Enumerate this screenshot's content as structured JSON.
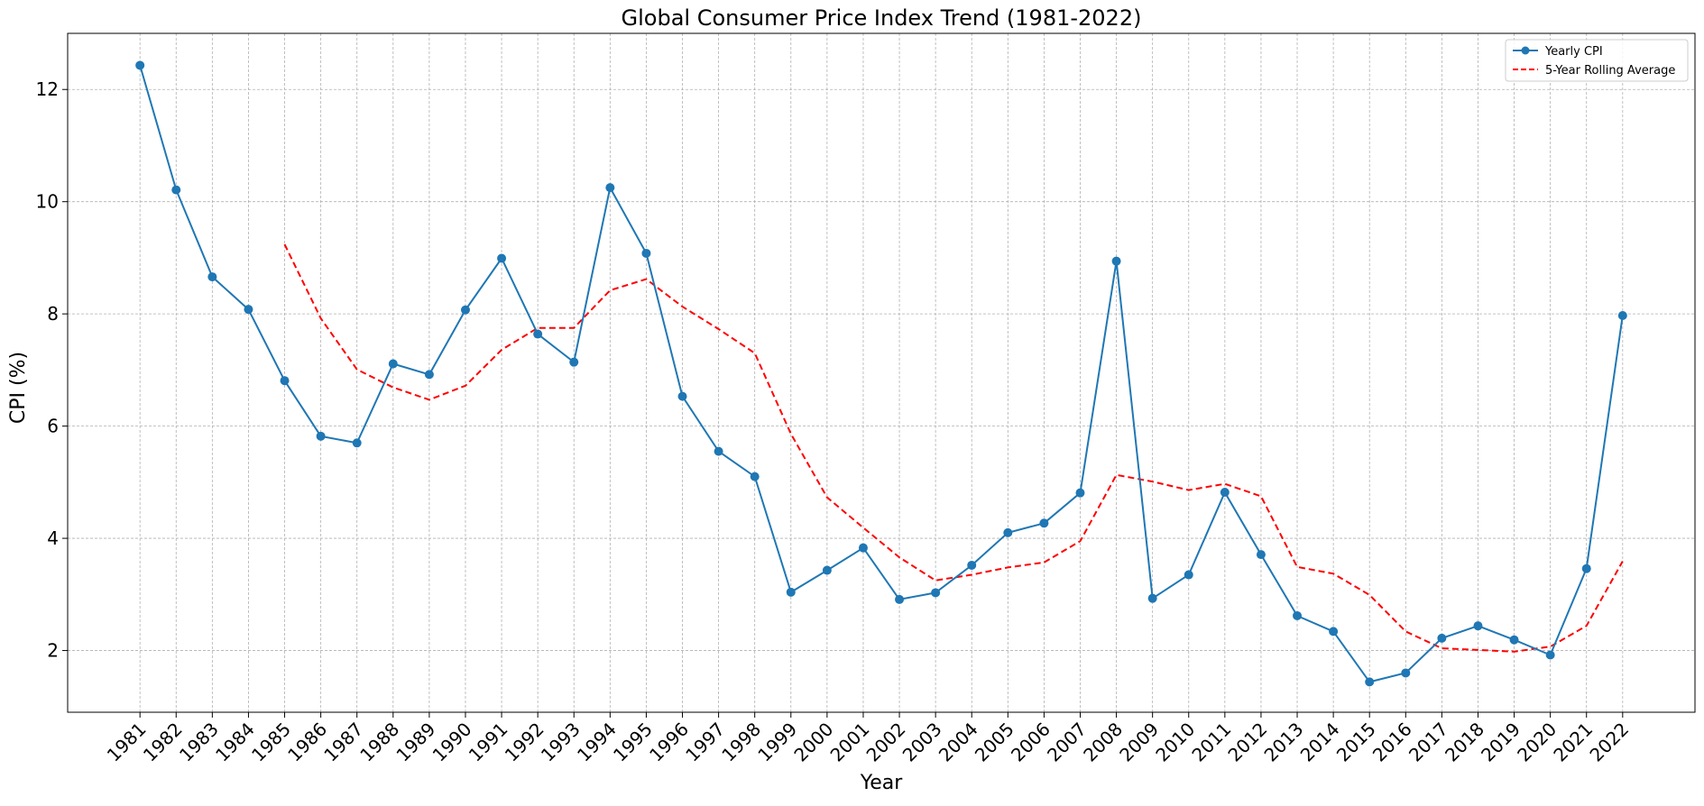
{
  "chart_data": {
    "type": "line",
    "title": "Global Consumer Price Index Trend (1981-2022)",
    "xlabel": "Year",
    "ylabel": "CPI (%)",
    "x": [
      1981,
      1982,
      1983,
      1984,
      1985,
      1986,
      1987,
      1988,
      1989,
      1990,
      1991,
      1992,
      1993,
      1994,
      1995,
      1996,
      1997,
      1998,
      1999,
      2000,
      2001,
      2002,
      2003,
      2004,
      2005,
      2006,
      2007,
      2008,
      2009,
      2010,
      2011,
      2012,
      2013,
      2014,
      2015,
      2016,
      2017,
      2018,
      2019,
      2020,
      2021,
      2022
    ],
    "yticks": [
      2,
      4,
      6,
      8,
      10,
      12
    ],
    "ylim": [
      0.9,
      13.0
    ],
    "xlim": [
      1979.0,
      2024.0
    ],
    "grid": true,
    "legend_position": "top-right",
    "series": [
      {
        "name": "Yearly CPI",
        "color": "#1f77b4",
        "style": "solid-with-markers",
        "values": [
          12.43,
          10.21,
          8.66,
          8.08,
          6.81,
          5.82,
          5.7,
          7.11,
          6.92,
          8.07,
          8.99,
          7.64,
          7.14,
          10.25,
          9.08,
          6.53,
          5.55,
          5.1,
          3.04,
          3.43,
          3.83,
          2.91,
          3.03,
          3.52,
          4.1,
          4.27,
          4.81,
          8.94,
          2.93,
          3.35,
          4.82,
          3.71,
          2.62,
          2.34,
          1.44,
          1.6,
          2.22,
          2.44,
          2.19,
          1.92,
          3.46,
          7.97
        ]
      },
      {
        "name": "5-Year Rolling Average",
        "color": "#ff0000",
        "style": "dashed",
        "values": [
          null,
          null,
          null,
          null,
          9.24,
          7.92,
          7.01,
          6.69,
          6.47,
          6.72,
          7.36,
          7.75,
          7.75,
          8.42,
          8.62,
          8.13,
          7.73,
          7.3,
          5.86,
          4.73,
          4.19,
          3.66,
          3.25,
          3.35,
          3.48,
          3.57,
          3.95,
          5.13,
          5.01,
          4.86,
          4.97,
          4.75,
          3.49,
          3.37,
          2.99,
          2.34,
          2.04,
          2.01,
          1.98,
          2.07,
          2.44,
          3.59
        ]
      }
    ]
  }
}
